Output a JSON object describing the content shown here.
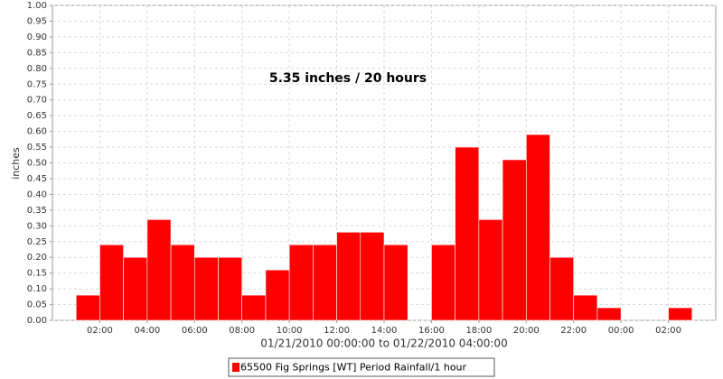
{
  "chart_data": {
    "type": "histogram",
    "title": "5.35 inches / 20 hours",
    "y_label": "inches",
    "x_label": "01/21/2010 00:00:00 to 01/22/2010 04:00:00",
    "bins": [
      1,
      2,
      3,
      4,
      5,
      6,
      7,
      8,
      9,
      10,
      11,
      12,
      13,
      14,
      15,
      16,
      17,
      18,
      19,
      20,
      21,
      22,
      23,
      24,
      25,
      26,
      27
    ],
    "series": [
      {
        "name": "65500 Fig Springs [WT] Period Rainfall/1 hour",
        "color": "#ff0000",
        "values": [
          0.08,
          0.24,
          0.2,
          0.32,
          0.24,
          0.2,
          0.2,
          0.08,
          0.16,
          0.24,
          0.24,
          0.28,
          0.28,
          0.24,
          0,
          0.24,
          0.55,
          0.32,
          0.51,
          0.59,
          0.2,
          0.08,
          0.04,
          0,
          0,
          0.04
        ]
      }
    ],
    "xlim": [
      0,
      28
    ],
    "xticks": [
      {
        "value": 2,
        "label": "02:00"
      },
      {
        "value": 4,
        "label": "04:00"
      },
      {
        "value": 6,
        "label": "06:00"
      },
      {
        "value": 8,
        "label": "08:00"
      },
      {
        "value": 10,
        "label": "10:00"
      },
      {
        "value": 12,
        "label": "12:00"
      },
      {
        "value": 14,
        "label": "14:00"
      },
      {
        "value": 16,
        "label": "16:00"
      },
      {
        "value": 18,
        "label": "18:00"
      },
      {
        "value": 20,
        "label": "20:00"
      },
      {
        "value": 22,
        "label": "22:00"
      },
      {
        "value": 24,
        "label": "00:00"
      },
      {
        "value": 26,
        "label": "02:00"
      }
    ],
    "ylim": [
      0,
      1
    ],
    "yticks": [
      {
        "value": 0,
        "label": "0.00"
      },
      {
        "value": 0.05,
        "label": "0.05"
      },
      {
        "value": 0.1,
        "label": "0.10"
      },
      {
        "value": 0.15,
        "label": "0.15"
      },
      {
        "value": 0.2,
        "label": "0.20"
      },
      {
        "value": 0.25,
        "label": "0.25"
      },
      {
        "value": 0.3,
        "label": "0.30"
      },
      {
        "value": 0.35,
        "label": "0.35"
      },
      {
        "value": 0.4,
        "label": "0.40"
      },
      {
        "value": 0.45,
        "label": "0.45"
      },
      {
        "value": 0.5,
        "label": "0.50"
      },
      {
        "value": 0.55,
        "label": "0.55"
      },
      {
        "value": 0.6,
        "label": "0.60"
      },
      {
        "value": 0.65,
        "label": "0.65"
      },
      {
        "value": 0.7,
        "label": "0.70"
      },
      {
        "value": 0.75,
        "label": "0.75"
      },
      {
        "value": 0.8,
        "label": "0.80"
      },
      {
        "value": 0.85,
        "label": "0.85"
      },
      {
        "value": 0.9,
        "label": "0.90"
      },
      {
        "value": 0.95,
        "label": "0.95"
      },
      {
        "value": 1,
        "label": "1.00"
      }
    ],
    "grid": true
  }
}
